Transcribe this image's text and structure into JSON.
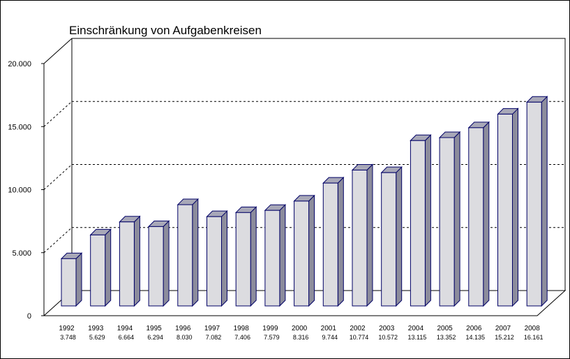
{
  "chart_data": {
    "type": "bar",
    "title": "Einschränkung von Aufgabenkreisen",
    "categories": [
      "1992",
      "1993",
      "1994",
      "1995",
      "1996",
      "1997",
      "1998",
      "1999",
      "2000",
      "2001",
      "2002",
      "2003",
      "2004",
      "2005",
      "2006",
      "2007",
      "2008"
    ],
    "values": [
      3748,
      5629,
      6664,
      6294,
      8030,
      7082,
      7406,
      7579,
      8316,
      9744,
      10774,
      10572,
      13115,
      13352,
      14135,
      15212,
      16161
    ],
    "value_labels": [
      "3.748",
      "5.629",
      "6.664",
      "6.294",
      "8.030",
      "7.082",
      "7.406",
      "7.579",
      "8.316",
      "9.744",
      "10.774",
      "10.572",
      "13.115",
      "13.352",
      "14.135",
      "15.212",
      "16.161"
    ],
    "y_tick_labels": [
      "0",
      "5.000",
      "10.000",
      "15.000",
      "20.000"
    ],
    "y_ticks": [
      0,
      5000,
      10000,
      15000,
      20000
    ],
    "ylim": [
      0,
      20000
    ],
    "xlabel": "",
    "ylabel": "",
    "grid": true,
    "legend": "none",
    "colors": {
      "bar_front": "#dcdce0",
      "bar_side": "#8c8c9c",
      "bar_top": "#a8a8b8",
      "bar_edge": "#000066",
      "grid": "#000000"
    }
  }
}
